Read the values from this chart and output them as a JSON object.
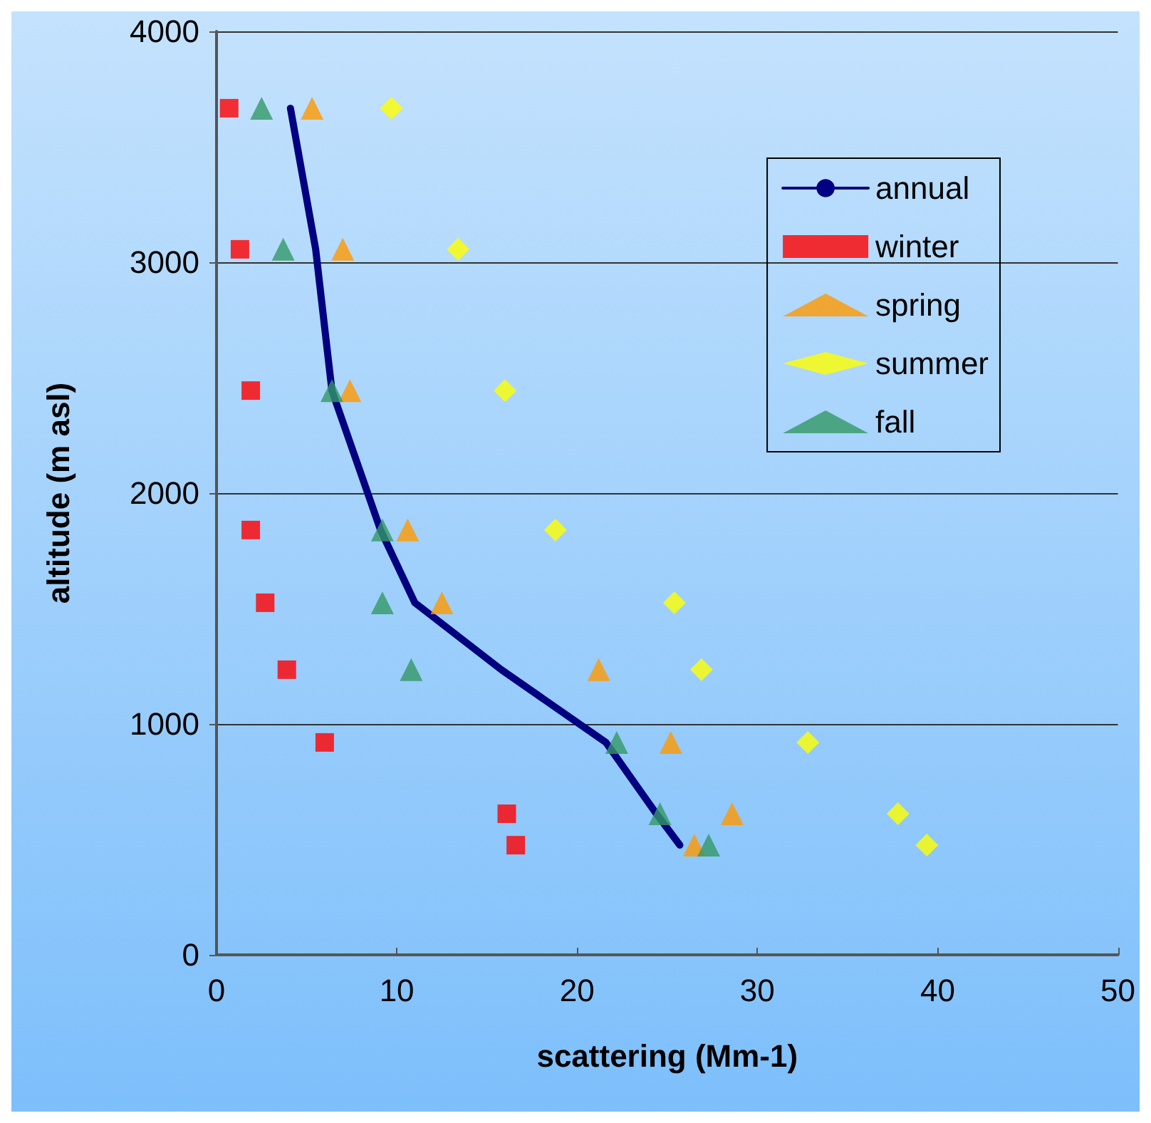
{
  "chart_data": {
    "type": "scatter",
    "xlabel": "scattering (Mm-1)",
    "ylabel": "altitude (m asl)",
    "xlim": [
      0,
      50
    ],
    "xticks": [
      0,
      10,
      20,
      30,
      40,
      50
    ],
    "ylim": [
      0,
      4000
    ],
    "yticks": [
      0,
      1000,
      2000,
      3000,
      4000
    ],
    "grid": "y",
    "legend": "top right",
    "series": [
      {
        "name": "annual",
        "type": "line",
        "color": "#000080",
        "marker": "none",
        "line_style": "solid",
        "x": [
          4.1,
          5.5,
          6.4,
          9.1,
          11.0,
          15.8,
          21.6,
          24.4,
          25.7
        ],
        "values": [
          3667,
          3056,
          2444,
          1840,
          1525,
          1235,
          920,
          611,
          475
        ]
      },
      {
        "name": "winter",
        "color": "#ff0000",
        "marker": "square",
        "x": [
          0.7,
          1.3,
          1.9,
          1.9,
          2.7,
          3.9,
          6.0,
          16.1,
          16.6
        ],
        "values": [
          3667,
          3056,
          2444,
          1840,
          1525,
          1235,
          920,
          611,
          475
        ]
      },
      {
        "name": "spring",
        "color": "#ff9900",
        "marker": "triangle",
        "x": [
          5.3,
          7.0,
          7.4,
          10.6,
          12.5,
          21.2,
          25.2,
          28.6,
          26.5
        ],
        "values": [
          3667,
          3056,
          2444,
          1840,
          1525,
          1235,
          920,
          611,
          475
        ]
      },
      {
        "name": "summer",
        "color": "#ffff00",
        "marker": "diamond",
        "x": [
          9.7,
          13.4,
          16.0,
          18.8,
          25.4,
          26.9,
          32.8,
          37.8,
          39.4
        ],
        "values": [
          3667,
          3056,
          2444,
          1840,
          1525,
          1235,
          920,
          611,
          475
        ]
      },
      {
        "name": "fall",
        "color": "#339966",
        "marker": "triangle",
        "x": [
          2.5,
          3.7,
          6.4,
          9.2,
          9.2,
          10.8,
          22.2,
          24.6,
          27.3
        ],
        "values": [
          3667,
          3056,
          2444,
          1840,
          1525,
          1235,
          920,
          611,
          475
        ]
      }
    ]
  }
}
